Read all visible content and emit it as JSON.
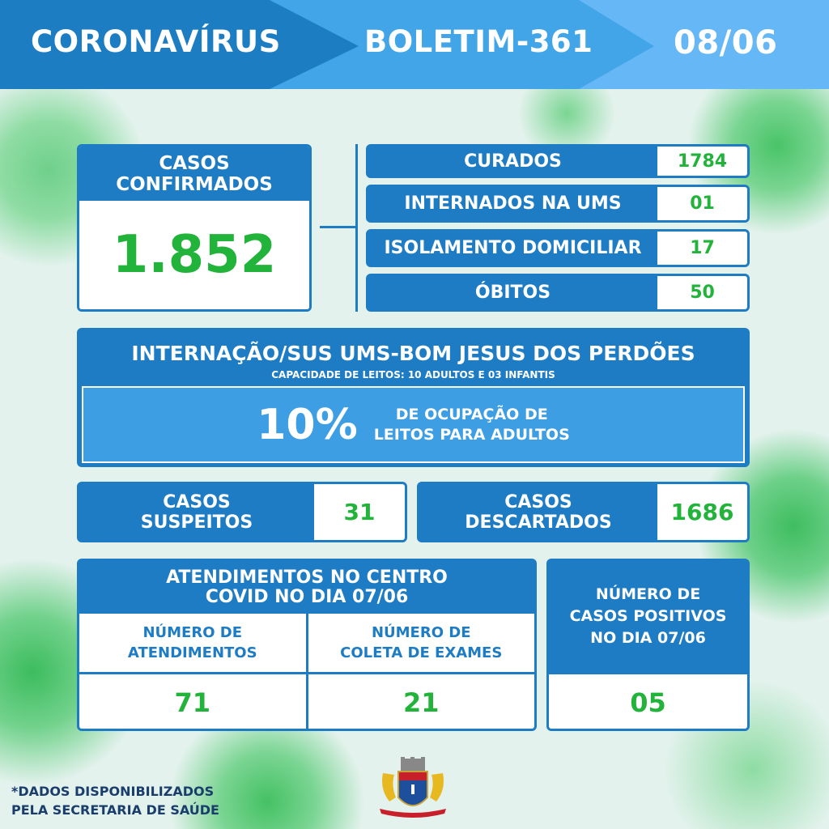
{
  "header": {
    "title": "CORONAVÍRUS",
    "bulletin": "BOLETIM-361",
    "date": "08/06"
  },
  "confirmed": {
    "label_line1": "CASOS",
    "label_line2": "CONFIRMADOS",
    "value": "1.852"
  },
  "stats": [
    {
      "label": "CURADOS",
      "value": "1784"
    },
    {
      "label": "INTERNADOS NA UMS",
      "value": "01"
    },
    {
      "label": "ISOLAMENTO DOMICILIAR",
      "value": "17"
    },
    {
      "label": "ÓBITOS",
      "value": "50"
    }
  ],
  "hospital": {
    "title": "INTERNAÇÃO/SUS UMS-BOM JESUS DOS PERDÕES",
    "subtitle": "CAPACIDADE DE LEITOS: 10 ADULTOS E 03 INFANTIS",
    "occupancy": "10%",
    "occupancy_line1": "DE OCUPAÇÃO DE",
    "occupancy_line2": "LEITOS PARA ADULTOS"
  },
  "suspects": {
    "line1": "CASOS",
    "line2": "SUSPEITOS",
    "value": "31"
  },
  "discarded": {
    "line1": "CASOS",
    "line2": "DESCARTADOS",
    "value": "1686"
  },
  "center": {
    "title_line1": "ATENDIMENTOS NO CENTRO",
    "title_line2": "COVID NO DIA 07/06",
    "col1_line1": "NÚMERO DE",
    "col1_line2": "ATENDIMENTOS",
    "col1_value": "71",
    "col2_line1": "NÚMERO DE",
    "col2_line2": "COLETA DE EXAMES",
    "col2_value": "21"
  },
  "positives": {
    "line1": "NÚMERO DE",
    "line2": "CASOS POSITIVOS",
    "line3": "NO DIA 07/06",
    "value": "05"
  },
  "footer": {
    "line1": "*DADOS DISPONIBILIZADOS",
    "line2": "PELA SECRETARIA DE SAÚDE"
  },
  "colors": {
    "dark_blue": "#1e7cc5",
    "mid_blue": "#42a5e8",
    "light_blue": "#65b8f5",
    "green": "#22b33a"
  }
}
